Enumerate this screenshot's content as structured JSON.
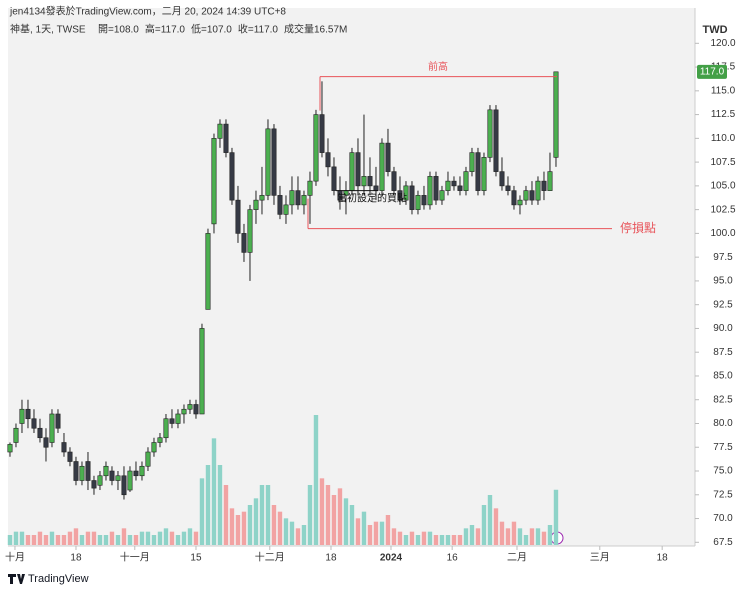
{
  "header": {
    "title": "jen4134發表於TradingView.com，二月 20, 2024 14:39 UTC+8",
    "footer": "TradingView"
  },
  "chart_data": {
    "type": "candlestick",
    "legend": "神基, 1天, TWSE",
    "ohlc_legend": [
      "開=108.0",
      "高=117.0",
      "低=107.0",
      "收=117.0",
      "成交量16.57M"
    ],
    "currency": "TWD",
    "price_label": {
      "value": 117,
      "label": "117.0"
    },
    "colors": {
      "up": "#4caf50",
      "down": "#363a45",
      "volume_up": "#8ed3c8",
      "volume_down": "#f2a3a3",
      "annotation": "#e8545a",
      "price_box": "#43a047"
    },
    "open": [
      77,
      78,
      80,
      81.5,
      80.5,
      79.5,
      78.5,
      78,
      81,
      78,
      77,
      76,
      74,
      76,
      74,
      73.5,
      74.5,
      75,
      74,
      74.5,
      73,
      75,
      74.5,
      75.5,
      77,
      78,
      78.5,
      80.5,
      80,
      81,
      81.5,
      82,
      81,
      92,
      101,
      110,
      111.5,
      108.5,
      103.5,
      100,
      98,
      102.5,
      103.5,
      104,
      111,
      104,
      102,
      103,
      104.5,
      103,
      104,
      105.5,
      112.5,
      108.5,
      107,
      104.5,
      104,
      104.5,
      108.5,
      105,
      106,
      105,
      104.5,
      109.5,
      106.5,
      104.5,
      103.5,
      105,
      102.5,
      104,
      103,
      106,
      103.5,
      104.5,
      105.5,
      105,
      104.5,
      106.5,
      108.5,
      104.5,
      108,
      113,
      106.5,
      105,
      104.5,
      103,
      103.5,
      104.5,
      103.5,
      105.5,
      104.5,
      108
    ],
    "high": [
      78,
      80,
      82.5,
      82.5,
      81.5,
      80.5,
      79.5,
      81.5,
      81.5,
      79,
      77.5,
      76.5,
      76,
      77,
      74.5,
      75,
      76,
      75.5,
      75,
      75.5,
      75.5,
      76,
      76,
      77.5,
      78.5,
      79,
      81,
      81.5,
      81.5,
      82,
      82.5,
      82.5,
      90.5,
      100.5,
      110.5,
      112,
      112,
      109,
      105,
      101,
      103,
      104.5,
      107,
      112,
      111.5,
      105,
      104,
      106,
      106,
      104.5,
      106.5,
      113,
      116,
      110,
      108,
      106,
      105.5,
      109,
      110,
      112.5,
      108,
      107,
      110,
      111,
      107,
      106,
      105.5,
      105.5,
      104.5,
      105,
      106.5,
      106.5,
      105,
      106.5,
      106,
      106,
      107,
      109,
      109,
      108.5,
      113.5,
      113.5,
      108,
      106,
      105,
      104,
      105,
      105.5,
      106,
      106.5,
      108.5,
      117
    ],
    "low": [
      76.5,
      77.5,
      79,
      79.5,
      79,
      78,
      76,
      77.5,
      79,
      76.5,
      75.5,
      73.5,
      73.5,
      73,
      72.5,
      73,
      74,
      73.5,
      73,
      72,
      72.8,
      74,
      74,
      75,
      76.5,
      77.5,
      78,
      79.5,
      79.5,
      80,
      81,
      80.5,
      81,
      92,
      100,
      109,
      108,
      103,
      99,
      97,
      95,
      101,
      102,
      103.5,
      103,
      101.5,
      101,
      102,
      102.5,
      102,
      101,
      105,
      108,
      106,
      104,
      102.5,
      102,
      104,
      104,
      104,
      104,
      103.5,
      104,
      106,
      104,
      103,
      103,
      102,
      102,
      102.5,
      102.5,
      103,
      103,
      104,
      104.5,
      104,
      104,
      106,
      104,
      104,
      107.5,
      106,
      104.5,
      104,
      102.5,
      102,
      103,
      103,
      103,
      103.5,
      104.5,
      107
    ],
    "close": [
      77.8,
      79.5,
      81.5,
      80.5,
      79.5,
      78.5,
      77.5,
      81,
      79.5,
      77,
      76,
      74,
      75.5,
      74,
      73.2,
      74.5,
      75.5,
      74,
      74.5,
      72.5,
      75,
      74.5,
      75.5,
      77,
      78,
      78.5,
      80.5,
      80,
      81,
      81.5,
      82,
      81,
      90,
      100,
      110,
      111.5,
      108.5,
      103.5,
      100,
      98,
      102.5,
      103.5,
      104,
      111,
      104,
      102,
      103,
      104.5,
      103,
      104,
      105.5,
      112.5,
      108.5,
      107,
      104.5,
      103.5,
      104.5,
      108.5,
      105,
      106,
      105,
      104.5,
      109.5,
      106.5,
      104.5,
      103.5,
      105,
      102.5,
      104,
      103,
      106,
      103.5,
      104.5,
      105.5,
      105,
      104.5,
      106.5,
      108.5,
      104.5,
      108,
      113,
      106.5,
      105,
      104.5,
      103,
      103.5,
      104.5,
      103.5,
      105.5,
      104.5,
      106.5,
      117
    ],
    "volume": [
      3,
      4,
      4,
      3,
      3,
      4,
      3,
      4,
      3,
      3,
      4,
      5,
      3,
      4,
      4,
      3,
      3,
      4,
      3,
      5,
      3,
      3,
      4,
      4,
      3,
      4,
      5,
      4,
      3,
      4,
      5,
      4,
      20,
      24,
      32,
      24,
      18,
      11,
      9,
      10,
      12,
      14,
      18,
      18,
      12,
      10,
      8,
      7,
      5,
      6,
      18,
      39,
      20,
      18,
      15,
      17,
      14,
      12,
      8,
      10,
      6,
      7,
      7,
      9,
      5,
      4,
      3,
      4,
      3,
      4,
      4,
      3,
      3,
      3,
      3,
      3,
      5,
      6,
      5,
      12,
      15,
      11,
      7,
      5,
      7,
      5,
      3,
      5,
      5,
      4,
      6,
      16.57
    ],
    "ylim": [
      66.9,
      121.4
    ],
    "yticks": [
      {
        "value": 67.5,
        "label": "67.5"
      },
      {
        "value": 70,
        "label": "70.0"
      },
      {
        "value": 72.5,
        "label": "72.5"
      },
      {
        "value": 75,
        "label": "75.0"
      },
      {
        "value": 77.5,
        "label": "77.5"
      },
      {
        "value": 80,
        "label": "80.0"
      },
      {
        "value": 82.5,
        "label": "82.5"
      },
      {
        "value": 85,
        "label": "85.0"
      },
      {
        "value": 87.5,
        "label": "87.5"
      },
      {
        "value": 90,
        "label": "90.0"
      },
      {
        "value": 92.5,
        "label": "92.5"
      },
      {
        "value": 95,
        "label": "95.0"
      },
      {
        "value": 97.5,
        "label": "97.5"
      },
      {
        "value": 100,
        "label": "100.0"
      },
      {
        "value": 102.5,
        "label": "102.5"
      },
      {
        "value": 105,
        "label": "105.0"
      },
      {
        "value": 107.5,
        "label": "107.5"
      },
      {
        "value": 110,
        "label": "110.0"
      },
      {
        "value": 112.5,
        "label": "112.5"
      },
      {
        "value": 115,
        "label": "115.0"
      },
      {
        "value": 117.5,
        "label": "117.5"
      },
      {
        "value": 120,
        "label": "120.0"
      }
    ],
    "xlim": [
      -0.33,
      114.17
    ],
    "xticks": [
      {
        "value": 0.83,
        "label": "十月"
      },
      {
        "value": 11,
        "label": "18"
      },
      {
        "value": 20.8,
        "label": "十一月"
      },
      {
        "value": 31,
        "label": "15"
      },
      {
        "value": 43.3,
        "label": "十二月"
      },
      {
        "value": 53.5,
        "label": "18"
      },
      {
        "value": 63.5,
        "label": "2024"
      },
      {
        "value": 73.7,
        "label": "16"
      },
      {
        "value": 84.5,
        "label": "二月"
      },
      {
        "value": 98.3,
        "label": "三月"
      },
      {
        "value": 108.7,
        "label": "18"
      }
    ],
    "annotations": [
      {
        "text": "前高",
        "price": 116.5
      },
      {
        "text": "停損點",
        "price": 100.5
      },
      {
        "text": "當初設定的買點",
        "price": 104.5
      }
    ]
  }
}
